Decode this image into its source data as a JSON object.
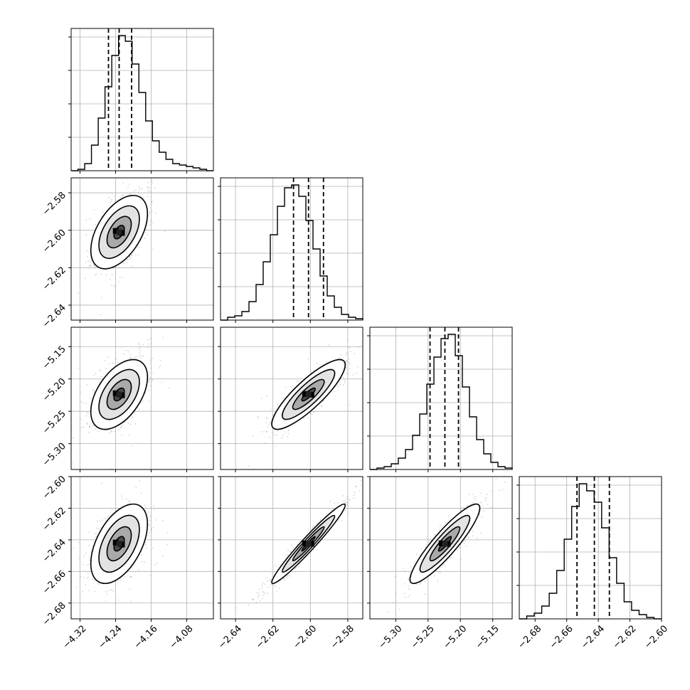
{
  "chart_data": {
    "type": "corner",
    "parameters": [
      {
        "range": [
          -4.34,
          -4.02
        ],
        "ticks": [
          -4.32,
          -4.24,
          -4.16,
          -4.08
        ],
        "tick_labels": [
          "−4.32",
          "−4.24",
          "−4.16",
          "−4.08"
        ],
        "quantiles": [
          -4.256,
          -4.232,
          -4.204
        ]
      },
      {
        "range": [
          -2.648,
          -2.572
        ],
        "ticks": [
          -2.64,
          -2.62,
          -2.6,
          -2.58
        ],
        "tick_labels": [
          "−2.64",
          "−2.62",
          "−2.60",
          "−2.58"
        ],
        "quantiles": [
          -2.609,
          -2.601,
          -2.593
        ]
      },
      {
        "range": [
          -5.34,
          -5.12
        ],
        "ticks": [
          -5.3,
          -5.25,
          -5.2,
          -5.15
        ],
        "tick_labels": [
          "−5.30",
          "−5.25",
          "−5.20",
          "−5.15"
        ],
        "quantiles": [
          -5.247,
          -5.224,
          -5.203
        ]
      },
      {
        "range": [
          -2.69,
          -2.6
        ],
        "ticks": [
          -2.68,
          -2.66,
          -2.64,
          -2.62,
          -2.6
        ],
        "tick_labels": [
          "−2.68",
          "−2.66",
          "−2.64",
          "−2.62",
          "−2.60"
        ],
        "quantiles": [
          -2.6535,
          -2.6425,
          -2.633
        ]
      }
    ],
    "diagonal_histograms": [
      [
        0.0,
        0.01,
        0.05,
        0.18,
        0.37,
        0.59,
        0.81,
        0.95,
        0.91,
        0.75,
        0.55,
        0.35,
        0.21,
        0.13,
        0.08,
        0.05,
        0.04,
        0.03,
        0.02,
        0.01,
        0.0
      ],
      [
        0.0,
        0.02,
        0.03,
        0.06,
        0.13,
        0.25,
        0.41,
        0.6,
        0.8,
        0.93,
        0.95,
        0.87,
        0.7,
        0.5,
        0.31,
        0.17,
        0.09,
        0.04,
        0.02,
        0.01
      ],
      [
        0.0,
        0.01,
        0.02,
        0.04,
        0.08,
        0.14,
        0.24,
        0.39,
        0.6,
        0.79,
        0.92,
        0.95,
        0.8,
        0.58,
        0.37,
        0.21,
        0.11,
        0.05,
        0.02,
        0.01
      ],
      [
        0.0,
        0.02,
        0.04,
        0.09,
        0.18,
        0.34,
        0.56,
        0.79,
        0.95,
        0.9,
        0.82,
        0.64,
        0.43,
        0.25,
        0.12,
        0.06,
        0.03,
        0.01,
        0.0
      ]
    ],
    "correlations": {
      "1-0": 0.5,
      "2-0": 0.5,
      "2-1": 0.85,
      "3-0": 0.5,
      "3-1": 0.97,
      "3-2": 0.9
    },
    "grid": true,
    "xlabel": "",
    "ylabel": ""
  },
  "colors": {
    "ink": "#000000",
    "grid": "#b0b0b0",
    "scatter": "#8a8a8a"
  }
}
